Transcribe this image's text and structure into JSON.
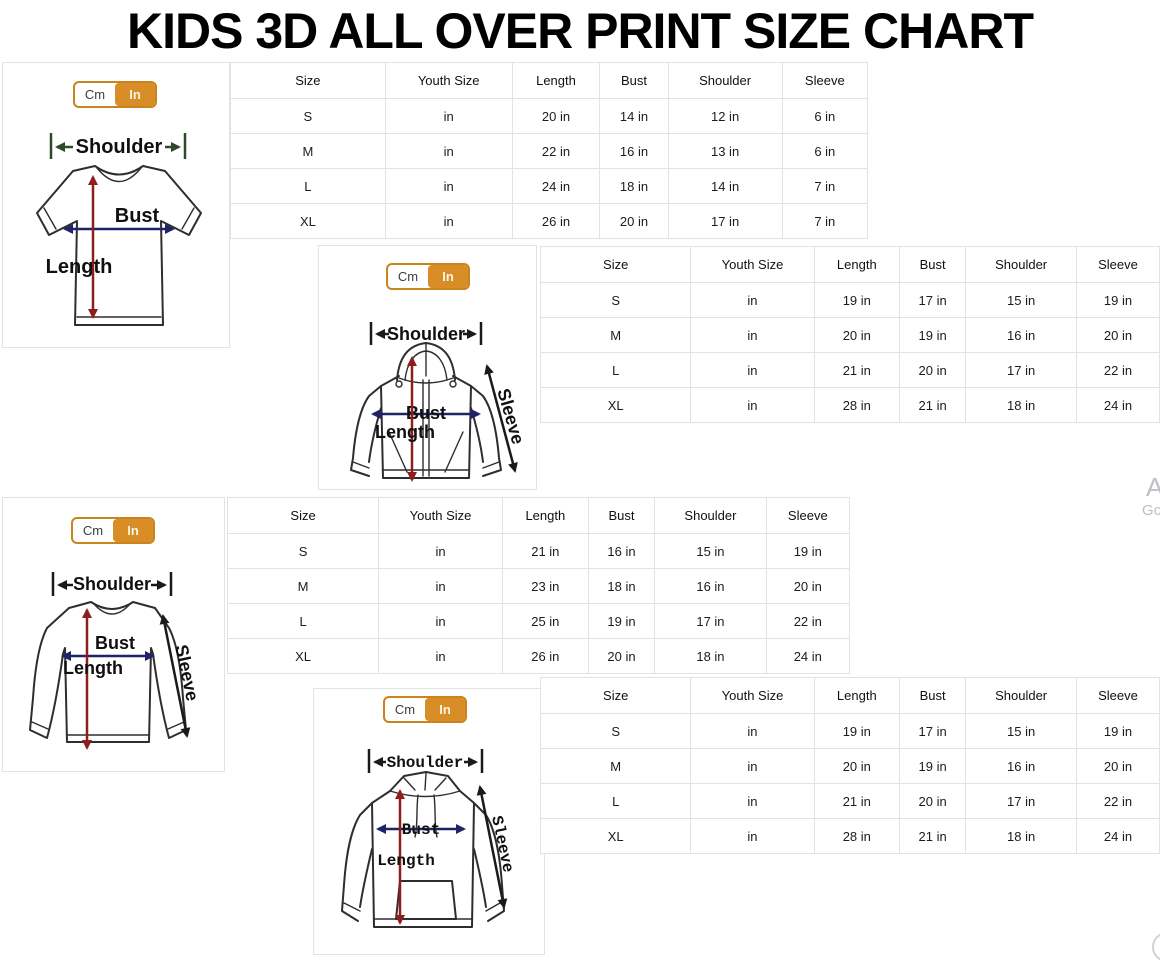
{
  "title": "KIDS 3D ALL OVER PRINT SIZE CHART",
  "unit_toggle": {
    "cm_label": "Cm",
    "in_label": "In",
    "selected": "In"
  },
  "diagram_labels": {
    "shoulder": "Shoulder",
    "bust": "Bust",
    "length": "Length",
    "sleeve": "Sleeve"
  },
  "table_columns": [
    "Size",
    "Youth Size",
    "Length",
    "Bust",
    "Shoulder",
    "Sleeve"
  ],
  "sections": [
    {
      "garment": "t-shirt",
      "rows": [
        [
          "S",
          "in",
          "20 in",
          "14 in",
          "12 in",
          "6 in"
        ],
        [
          "M",
          "in",
          "22 in",
          "16 in",
          "13 in",
          "6 in"
        ],
        [
          "L",
          "in",
          "24 in",
          "18 in",
          "14 in",
          "7 in"
        ],
        [
          "XL",
          "in",
          "26 in",
          "20 in",
          "17 in",
          "7 in"
        ]
      ]
    },
    {
      "garment": "zip-up-hoodie",
      "rows": [
        [
          "S",
          "in",
          "19 in",
          "17 in",
          "15 in",
          "19 in"
        ],
        [
          "M",
          "in",
          "20 in",
          "19 in",
          "16 in",
          "20 in"
        ],
        [
          "L",
          "in",
          "21 in",
          "20 in",
          "17 in",
          "22 in"
        ],
        [
          "XL",
          "in",
          "28 in",
          "21 in",
          "18 in",
          "24 in"
        ]
      ]
    },
    {
      "garment": "long-sleeve-shirt",
      "rows": [
        [
          "S",
          "in",
          "21 in",
          "16 in",
          "15 in",
          "19 in"
        ],
        [
          "M",
          "in",
          "23 in",
          "18 in",
          "16 in",
          "20 in"
        ],
        [
          "L",
          "in",
          "25 in",
          "19 in",
          "17 in",
          "22 in"
        ],
        [
          "XL",
          "in",
          "26 in",
          "20 in",
          "18 in",
          "24 in"
        ]
      ]
    },
    {
      "garment": "pullover-hoodie",
      "rows": [
        [
          "S",
          "in",
          "19 in",
          "17 in",
          "15 in",
          "19 in"
        ],
        [
          "M",
          "in",
          "20 in",
          "19 in",
          "16 in",
          "20 in"
        ],
        [
          "L",
          "in",
          "21 in",
          "20 in",
          "17 in",
          "22 in"
        ],
        [
          "XL",
          "in",
          "28 in",
          "21 in",
          "18 in",
          "24 in"
        ]
      ]
    }
  ],
  "watermark": {
    "line1": "A",
    "line2": "Go"
  },
  "colors": {
    "accent_orange": "#d88d26",
    "length_arrow": "#8f1d1d",
    "bust_arrow": "#1f2468",
    "shoulder_arrow_green": "#2f4a28",
    "arrow_black": "#1a1a1a",
    "table_border": "#e2e2e2"
  }
}
